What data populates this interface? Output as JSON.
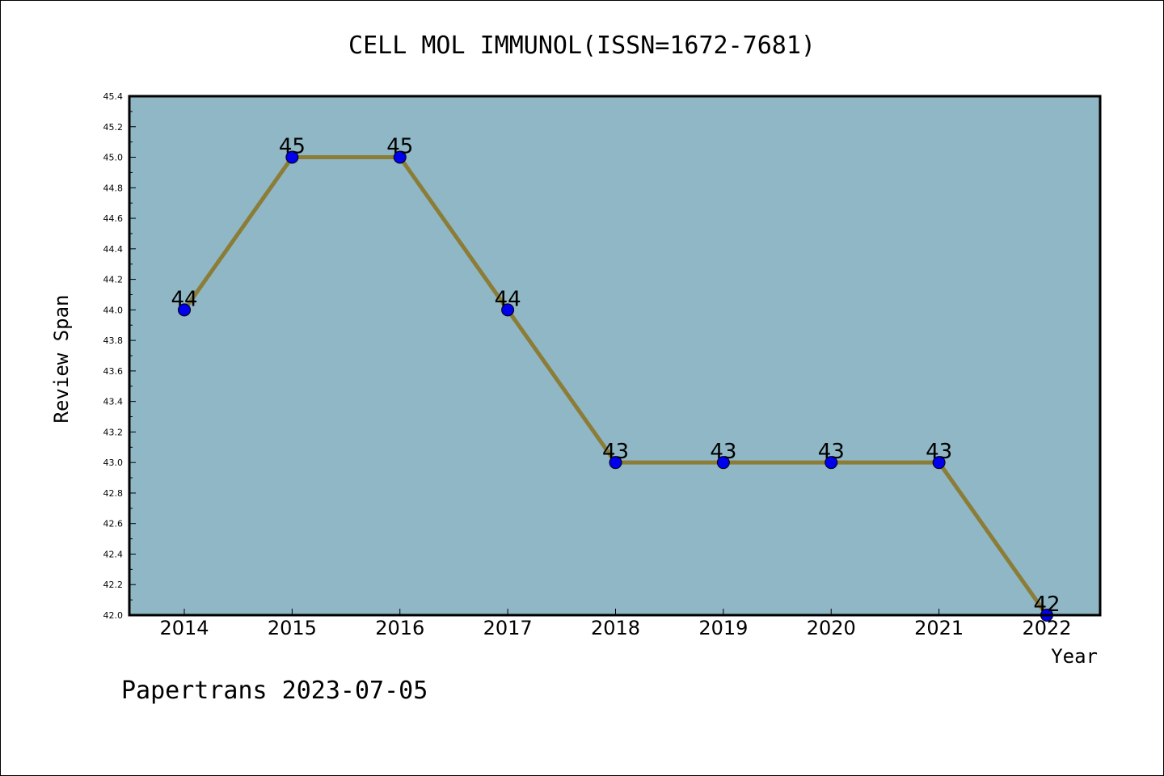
{
  "chart_data": {
    "type": "line",
    "title": "CELL MOL IMMUNOL(ISSN=1672-7681)",
    "xlabel": "Year",
    "ylabel": "Review Span",
    "footer": "Papertrans 2023-07-05",
    "x": [
      "2014",
      "2015",
      "2016",
      "2017",
      "2018",
      "2019",
      "2020",
      "2021",
      "2022"
    ],
    "series": [
      {
        "values": [
          44,
          45,
          45,
          44,
          43,
          43,
          43,
          43,
          42
        ]
      }
    ],
    "data_labels": [
      "44",
      "45",
      "45",
      "44",
      "43",
      "43",
      "43",
      "43",
      "42"
    ],
    "ylim": [
      42.0,
      45.4
    ],
    "y_ticks": [
      "42.0",
      "42.2",
      "42.4",
      "42.6",
      "42.8",
      "43.0",
      "43.2",
      "43.4",
      "43.6",
      "43.8",
      "44.0",
      "44.2",
      "44.4",
      "44.6",
      "44.8",
      "45.0",
      "45.2",
      "45.4"
    ],
    "grid": false,
    "colors": {
      "plot_background": "#8fb7c5",
      "line": "#8b7d37",
      "marker": "#0000ee"
    }
  }
}
